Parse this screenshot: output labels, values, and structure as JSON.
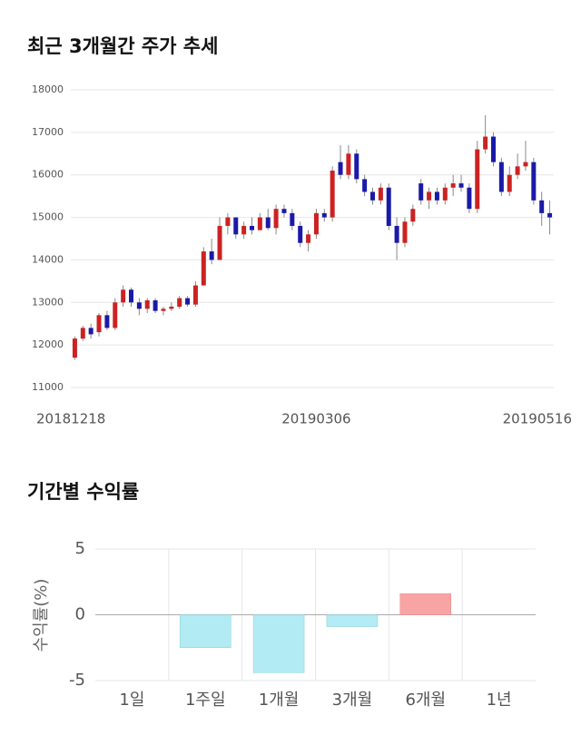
{
  "chart_data": [
    {
      "type": "candlestick",
      "title": "최근 3개월간 주가 추세",
      "categories": [
        "20181218",
        null,
        null,
        null,
        null,
        null,
        null,
        null,
        null,
        null,
        null,
        null,
        null,
        null,
        null,
        null,
        null,
        null,
        null,
        null,
        null,
        null,
        null,
        null,
        null,
        null,
        null,
        null,
        null,
        null,
        "20190306",
        null,
        null,
        null,
        null,
        null,
        null,
        null,
        null,
        null,
        null,
        null,
        null,
        null,
        null,
        null,
        null,
        null,
        null,
        null,
        null,
        null,
        null,
        null,
        null,
        null,
        null,
        null,
        null,
        "20190516"
      ],
      "candles": [
        [
          11700,
          12200,
          11650,
          12150
        ],
        [
          12150,
          12450,
          12100,
          12400
        ],
        [
          12400,
          12500,
          12150,
          12250
        ],
        [
          12300,
          12750,
          12200,
          12700
        ],
        [
          12700,
          12800,
          12350,
          12400
        ],
        [
          12400,
          13100,
          12350,
          13000
        ],
        [
          13000,
          13400,
          12900,
          13300
        ],
        [
          13300,
          13350,
          12900,
          13000
        ],
        [
          13000,
          13100,
          12700,
          12850
        ],
        [
          12850,
          13100,
          12750,
          13050
        ],
        [
          13050,
          13100,
          12750,
          12800
        ],
        [
          12800,
          12900,
          12700,
          12850
        ],
        [
          12850,
          13000,
          12800,
          12900
        ],
        [
          12900,
          13150,
          12850,
          13100
        ],
        [
          13100,
          13150,
          12900,
          12950
        ],
        [
          12950,
          13500,
          12900,
          13400
        ],
        [
          13400,
          14300,
          13400,
          14200
        ],
        [
          14200,
          14500,
          13900,
          14000
        ],
        [
          14000,
          15000,
          14000,
          14800
        ],
        [
          14800,
          15100,
          14600,
          15000
        ],
        [
          15000,
          15000,
          14500,
          14600
        ],
        [
          14600,
          14900,
          14500,
          14800
        ],
        [
          14800,
          15000,
          14600,
          14700
        ],
        [
          14700,
          15100,
          14700,
          15000
        ],
        [
          15000,
          15200,
          14700,
          14750
        ],
        [
          14750,
          15300,
          14600,
          15200
        ],
        [
          15200,
          15300,
          15000,
          15100
        ],
        [
          15100,
          15200,
          14700,
          14800
        ],
        [
          14800,
          14900,
          14300,
          14400
        ],
        [
          14400,
          14700,
          14200,
          14600
        ],
        [
          14600,
          15200,
          14500,
          15100
        ],
        [
          15100,
          15200,
          14900,
          15000
        ],
        [
          15000,
          16200,
          14900,
          16100
        ],
        [
          16300,
          16700,
          15900,
          16000
        ],
        [
          16000,
          16700,
          15900,
          16500
        ],
        [
          16500,
          16600,
          15800,
          15900
        ],
        [
          15900,
          16000,
          15500,
          15600
        ],
        [
          15600,
          15700,
          15300,
          15400
        ],
        [
          15400,
          15800,
          15300,
          15700
        ],
        [
          15700,
          15800,
          14700,
          14800
        ],
        [
          14800,
          15000,
          14000,
          14400
        ],
        [
          14400,
          15000,
          14300,
          14900
        ],
        [
          14900,
          15300,
          14800,
          15200
        ],
        [
          15800,
          15900,
          15300,
          15400
        ],
        [
          15400,
          15700,
          15200,
          15600
        ],
        [
          15600,
          15700,
          15300,
          15400
        ],
        [
          15400,
          15800,
          15300,
          15700
        ],
        [
          15700,
          16000,
          15500,
          15800
        ],
        [
          15800,
          16000,
          15600,
          15700
        ],
        [
          15700,
          15800,
          15100,
          15200
        ],
        [
          15200,
          16800,
          15100,
          16600
        ],
        [
          16600,
          17400,
          16500,
          16900
        ],
        [
          16900,
          17000,
          16200,
          16300
        ],
        [
          16300,
          16400,
          15500,
          15600
        ],
        [
          15600,
          16200,
          15500,
          16000
        ],
        [
          16000,
          16500,
          15900,
          16200
        ],
        [
          16200,
          16800,
          16100,
          16300
        ],
        [
          16300,
          16400,
          15300,
          15400
        ],
        [
          15400,
          15600,
          14800,
          15100
        ],
        [
          15100,
          15400,
          14600,
          15000
        ]
      ],
      "up_color": "#cc2222",
      "down_color": "#1a1aa8",
      "ylim": [
        11000,
        18000
      ],
      "yticks": [
        11000,
        12000,
        13000,
        14000,
        15000,
        16000,
        17000,
        18000
      ],
      "grid": true
    },
    {
      "type": "bar",
      "title": "기간별 수익률",
      "y_label": "수익률(%)",
      "categories": [
        "1일",
        "1주일",
        "1개월",
        "3개월",
        "6개월",
        "1년"
      ],
      "values": [
        null,
        -2.5,
        -4.4,
        -0.9,
        1.6,
        null
      ],
      "positive_color": "#f8a4a4",
      "negative_color": "#b3ebf4",
      "ylim": [
        -5,
        5
      ],
      "yticks": [
        -5,
        0,
        5
      ],
      "grid": true
    }
  ]
}
